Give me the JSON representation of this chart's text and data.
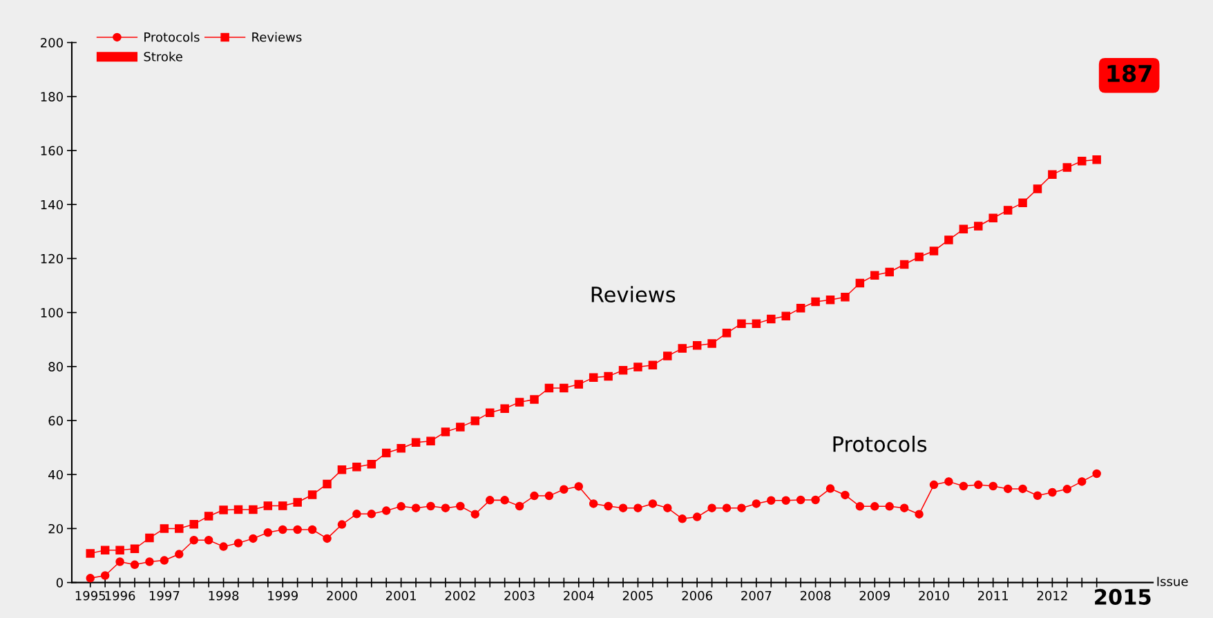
{
  "chart_data": {
    "type": "line",
    "categories": [
      "1995",
      null,
      "1996",
      null,
      null,
      "1997",
      null,
      null,
      null,
      "1998",
      null,
      null,
      null,
      "1999",
      null,
      null,
      null,
      "2000",
      null,
      null,
      null,
      "2001",
      null,
      null,
      null,
      "2002",
      null,
      null,
      null,
      "2003",
      null,
      null,
      null,
      "2004",
      null,
      null,
      null,
      "2005",
      null,
      null,
      null,
      "2006",
      null,
      null,
      null,
      "2007",
      null,
      null,
      null,
      "2008",
      null,
      null,
      null,
      "2009",
      null,
      null,
      null,
      "2010",
      null,
      null,
      null,
      "2011",
      null,
      null,
      null,
      "2012",
      null,
      null,
      null
    ],
    "series": [
      {
        "name": "Protocols",
        "color": "#ff0000",
        "marker": "circle",
        "values": [
          1.6,
          2.6,
          7.7,
          6.6,
          7.7,
          8.2,
          10.5,
          15.7,
          15.7,
          13.3,
          14.6,
          16.3,
          18.5,
          19.6,
          19.6,
          19.6,
          16.3,
          21.5,
          25.4,
          25.4,
          26.6,
          28.2,
          27.6,
          28.3,
          27.6,
          28.3,
          25.3,
          30.5,
          30.5,
          28.3,
          32.1,
          32.1,
          34.5,
          35.6,
          29.2,
          28.3,
          27.6,
          27.6,
          29.2,
          27.6,
          23.6,
          24.3,
          27.6,
          27.6,
          27.6,
          29.2,
          30.4,
          30.4,
          30.6,
          30.6,
          34.8,
          32.4,
          28.2,
          28.2,
          28.2,
          27.6,
          25.3,
          36.2,
          37.4,
          35.7,
          36.2,
          35.7,
          34.7,
          34.7,
          32.2,
          33.4,
          34.6,
          37.4,
          40.3
        ]
      },
      {
        "name": "Reviews",
        "color": "#ff0000",
        "marker": "square",
        "values": [
          10.8,
          12,
          12,
          12.5,
          16.5,
          20,
          20,
          21.6,
          24.6,
          26.9,
          27,
          27,
          28.4,
          28.4,
          29.7,
          32.5,
          36.5,
          41.8,
          42.8,
          43.8,
          48,
          49.7,
          51.9,
          52.4,
          55.8,
          57.6,
          59.9,
          62.9,
          64.4,
          66.8,
          67.8,
          72,
          72,
          73.4,
          75.9,
          76.4,
          78.6,
          79.8,
          80.5,
          83.9,
          86.7,
          87.8,
          88.5,
          92.4,
          95.9,
          95.9,
          97.6,
          98.7,
          101.6,
          104,
          104.7,
          105.7,
          110.9,
          113.8,
          115,
          117.8,
          120.6,
          122.8,
          126.9,
          130.9,
          132,
          135,
          137.9,
          140.6,
          145.8,
          151.1,
          153.7,
          156.1,
          156.6
        ]
      }
    ],
    "xlabel": "Issue",
    "legend_title": "Stroke",
    "ylim": [
      0,
      200
    ],
    "yticks": [
      0,
      20,
      40,
      60,
      80,
      100,
      120,
      140,
      160,
      180,
      200
    ],
    "annotations": [
      "Reviews",
      "Protocols",
      "187",
      "2015"
    ],
    "grid": false,
    "legend": "top left",
    "line_style": "solid"
  }
}
